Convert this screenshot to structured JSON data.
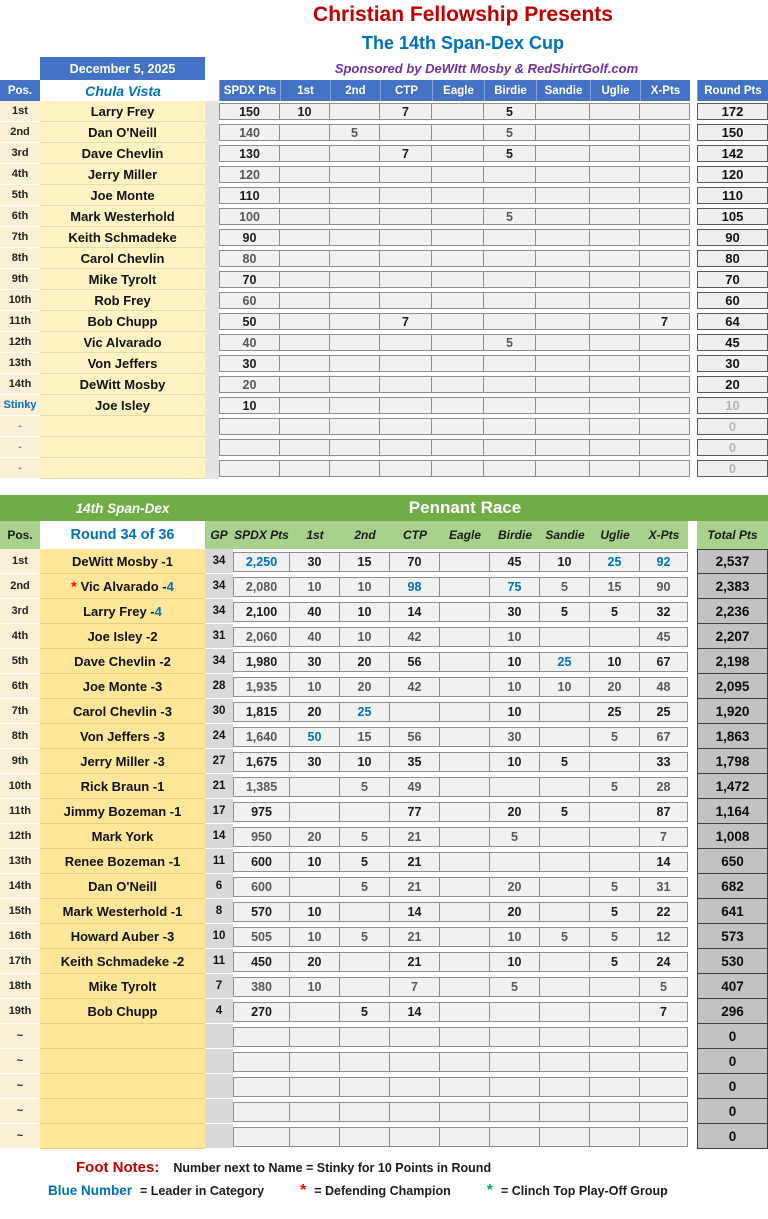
{
  "header": {
    "title1": "Christian Fellowship Presents",
    "title2": "The 14th Span-Dex Cup",
    "sponsor": "Sponsored by DeWItt Mosby & RedShirtGolf.com"
  },
  "colors": {
    "header_blue": "#4472C4",
    "accent_blue": "#0070C0",
    "title_red": "#C00000",
    "sponsor_purple": "#7030A0",
    "green_dark": "#70AD47",
    "green_light": "#A9D18E",
    "name_gold": "#FFE699",
    "name_light_yellow": "#FFF3C4",
    "champion_star_red": "#FF0000",
    "clinch_star_green": "#00B050"
  },
  "round_table": {
    "date": "December 5, 2025",
    "course": "Chula Vista",
    "pos_header": "Pos.",
    "columns": [
      "SPDX Pts",
      "1st",
      "2nd",
      "CTP",
      "Eagle",
      "Birdie",
      "Sandie",
      "Uglie",
      "X-Pts"
    ],
    "round_col": "Round Pts",
    "rows": [
      {
        "pos": "1st",
        "name": "Larry Frey",
        "cells": [
          "150",
          "10",
          "",
          "7",
          "",
          "5",
          "",
          "",
          ""
        ],
        "round": "172"
      },
      {
        "pos": "2nd",
        "name": "Dan O'Neill",
        "cells": [
          "140",
          "",
          "5",
          "",
          "",
          "5",
          "",
          "",
          ""
        ],
        "round": "150"
      },
      {
        "pos": "3rd",
        "name": "Dave Chevlin",
        "cells": [
          "130",
          "",
          "",
          "7",
          "",
          "5",
          "",
          "",
          ""
        ],
        "round": "142"
      },
      {
        "pos": "4th",
        "name": "Jerry Miller",
        "cells": [
          "120",
          "",
          "",
          "",
          "",
          "",
          "",
          "",
          ""
        ],
        "round": "120"
      },
      {
        "pos": "5th",
        "name": "Joe Monte",
        "cells": [
          "110",
          "",
          "",
          "",
          "",
          "",
          "",
          "",
          ""
        ],
        "round": "110"
      },
      {
        "pos": "6th",
        "name": "Mark Westerhold",
        "cells": [
          "100",
          "",
          "",
          "",
          "",
          "5",
          "",
          "",
          ""
        ],
        "round": "105"
      },
      {
        "pos": "7th",
        "name": "Keith Schmadeke",
        "cells": [
          "90",
          "",
          "",
          "",
          "",
          "",
          "",
          "",
          ""
        ],
        "round": "90"
      },
      {
        "pos": "8th",
        "name": "Carol Chevlin",
        "cells": [
          "80",
          "",
          "",
          "",
          "",
          "",
          "",
          "",
          ""
        ],
        "round": "80"
      },
      {
        "pos": "9th",
        "name": "Mike Tyrolt",
        "cells": [
          "70",
          "",
          "",
          "",
          "",
          "",
          "",
          "",
          ""
        ],
        "round": "70"
      },
      {
        "pos": "10th",
        "name": "Rob Frey",
        "cells": [
          "60",
          "",
          "",
          "",
          "",
          "",
          "",
          "",
          ""
        ],
        "round": "60"
      },
      {
        "pos": "11th",
        "name": "Bob Chupp",
        "cells": [
          "50",
          "",
          "",
          "7",
          "",
          "",
          "",
          "",
          "7"
        ],
        "round": "64"
      },
      {
        "pos": "12th",
        "name": "Vic Alvarado",
        "cells": [
          "40",
          "",
          "",
          "",
          "",
          "5",
          "",
          "",
          ""
        ],
        "round": "45"
      },
      {
        "pos": "13th",
        "name": "Von Jeffers",
        "cells": [
          "30",
          "",
          "",
          "",
          "",
          "",
          "",
          "",
          ""
        ],
        "round": "30"
      },
      {
        "pos": "14th",
        "name": "DeWitt Mosby",
        "cells": [
          "20",
          "",
          "",
          "",
          "",
          "",
          "",
          "",
          ""
        ],
        "round": "20"
      },
      {
        "pos": "Stinky",
        "pos_style": "blue",
        "name": "Joe Isley",
        "cells": [
          "10",
          "",
          "",
          "",
          "",
          "",
          "",
          "",
          ""
        ],
        "round": "10",
        "round_dim": true
      },
      {
        "pos": "-",
        "pos_style": "dash",
        "name": "",
        "cells": [
          "",
          "",
          "",
          "",
          "",
          "",
          "",
          "",
          ""
        ],
        "round": "0",
        "round_dim": true
      },
      {
        "pos": "-",
        "pos_style": "dash",
        "name": "",
        "cells": [
          "",
          "",
          "",
          "",
          "",
          "",
          "",
          "",
          ""
        ],
        "round": "0",
        "round_dim": true
      },
      {
        "pos": "-",
        "pos_style": "dash",
        "name": "",
        "cells": [
          "",
          "",
          "",
          "",
          "",
          "",
          "",
          "",
          ""
        ],
        "round": "0",
        "round_dim": true
      }
    ]
  },
  "pennant_table": {
    "series_label": "14th Span-Dex",
    "title": "Pennant Race",
    "round_label": "Round  34 of 36",
    "pos_header": "Pos.",
    "columns": [
      "GP",
      "SPDX Pts",
      "1st",
      "2nd",
      "CTP",
      "Eagle",
      "Birdie",
      "Sandie",
      "Uglie",
      "X-Pts"
    ],
    "total_col": "Total Pts",
    "rows": [
      {
        "pos": "1st",
        "name": "DeWitt Mosby",
        "stinkies": "1",
        "gp": "34",
        "cells": [
          {
            "v": "2,250",
            "b": 1
          },
          "30",
          "15",
          "70",
          "",
          "45",
          "10",
          {
            "v": "25",
            "b": 1
          },
          {
            "v": "92",
            "b": 1
          }
        ],
        "total": "2,537"
      },
      {
        "pos": "2nd",
        "name": "Vic Alvarado",
        "stinkies": "4",
        "stinkies_blue": true,
        "champion_star": true,
        "gp": "34",
        "cells": [
          "2,080",
          "10",
          "10",
          {
            "v": "98",
            "b": 1
          },
          "",
          {
            "v": "75",
            "b": 1
          },
          "5",
          "15",
          "90"
        ],
        "total": "2,383"
      },
      {
        "pos": "3rd",
        "name": "Larry Frey",
        "stinkies": "4",
        "stinkies_blue": true,
        "gp": "34",
        "cells": [
          "2,100",
          "40",
          "10",
          "14",
          "",
          "30",
          "5",
          "5",
          "32"
        ],
        "total": "2,236"
      },
      {
        "pos": "4th",
        "name": "Joe Isley",
        "stinkies": "2",
        "gp": "31",
        "cells": [
          "2,060",
          "40",
          "10",
          "42",
          "",
          "10",
          "",
          "",
          "45"
        ],
        "total": "2,207"
      },
      {
        "pos": "5th",
        "name": "Dave Chevlin",
        "stinkies": "2",
        "gp": "34",
        "cells": [
          "1,980",
          "30",
          "20",
          "56",
          "",
          "10",
          {
            "v": "25",
            "b": 1
          },
          "10",
          "67"
        ],
        "total": "2,198"
      },
      {
        "pos": "6th",
        "name": "Joe Monte",
        "stinkies": "3",
        "gp": "28",
        "cells": [
          "1,935",
          "10",
          "20",
          "42",
          "",
          "10",
          "10",
          "20",
          "48"
        ],
        "total": "2,095"
      },
      {
        "pos": "7th",
        "name": "Carol Chevlin",
        "stinkies": "3",
        "gp": "30",
        "cells": [
          "1,815",
          "20",
          {
            "v": "25",
            "b": 1
          },
          "",
          "",
          "10",
          "",
          "25",
          "25"
        ],
        "total": "1,920"
      },
      {
        "pos": "8th",
        "name": "Von Jeffers",
        "stinkies": "3",
        "gp": "24",
        "cells": [
          "1,640",
          {
            "v": "50",
            "b": 1
          },
          "15",
          "56",
          "",
          "30",
          "",
          "5",
          "67"
        ],
        "total": "1,863"
      },
      {
        "pos": "9th",
        "name": "Jerry Miller",
        "stinkies": "3",
        "gp": "27",
        "cells": [
          "1,675",
          "30",
          "10",
          "35",
          "",
          "10",
          "5",
          "",
          "33"
        ],
        "total": "1,798"
      },
      {
        "pos": "10th",
        "name": "Rick Braun",
        "stinkies": "1",
        "gp": "21",
        "cells": [
          "1,385",
          "",
          "5",
          "49",
          "",
          "",
          "",
          "5",
          "28"
        ],
        "total": "1,472"
      },
      {
        "pos": "11th",
        "name": "Jimmy Bozeman",
        "stinkies": "1",
        "gp": "17",
        "cells": [
          "975",
          "",
          "",
          "77",
          "",
          "20",
          "5",
          "",
          "87"
        ],
        "total": "1,164"
      },
      {
        "pos": "12th",
        "name": "Mark York",
        "gp": "14",
        "cells": [
          "950",
          "20",
          "5",
          "21",
          "",
          "5",
          "",
          "",
          "7"
        ],
        "total": "1,008"
      },
      {
        "pos": "13th",
        "name": "Renee Bozeman",
        "stinkies": "1",
        "gp": "11",
        "cells": [
          "600",
          "10",
          "5",
          "21",
          "",
          "",
          "",
          "",
          "14"
        ],
        "total": "650"
      },
      {
        "pos": "14th",
        "name": "Dan O'Neill",
        "gp": "6",
        "cells": [
          "600",
          "",
          "5",
          "21",
          "",
          "20",
          "",
          "5",
          "31"
        ],
        "total": "682"
      },
      {
        "pos": "15th",
        "name": "Mark Westerhold",
        "stinkies": "1",
        "gp": "8",
        "cells": [
          "570",
          "10",
          "",
          "14",
          "",
          "20",
          "",
          "5",
          "22"
        ],
        "total": "641"
      },
      {
        "pos": "16th",
        "name": "Howard Auber",
        "stinkies": "3",
        "gp": "10",
        "cells": [
          "505",
          "10",
          "5",
          "21",
          "",
          "10",
          "5",
          "5",
          "12"
        ],
        "total": "573"
      },
      {
        "pos": "17th",
        "name": "Keith Schmadeke",
        "stinkies": "2",
        "gp": "11",
        "cells": [
          "450",
          "20",
          "",
          "21",
          "",
          "10",
          "",
          "5",
          "24"
        ],
        "total": "530"
      },
      {
        "pos": "18th",
        "name": "Mike Tyrolt",
        "gp": "7",
        "cells": [
          "380",
          "10",
          "",
          "7",
          "",
          "5",
          "",
          "",
          "5"
        ],
        "total": "407"
      },
      {
        "pos": "19th",
        "name": "Bob Chupp",
        "gp": "4",
        "cells": [
          "270",
          "",
          "5",
          "14",
          "",
          "",
          "",
          "",
          "7"
        ],
        "total": "296"
      },
      {
        "pos": "~",
        "name": "",
        "gp": "",
        "cells": [
          "",
          "",
          "",
          "",
          "",
          "",
          "",
          "",
          ""
        ],
        "total": "0"
      },
      {
        "pos": "~",
        "name": "",
        "gp": "",
        "cells": [
          "",
          "",
          "",
          "",
          "",
          "",
          "",
          "",
          ""
        ],
        "total": "0"
      },
      {
        "pos": "~",
        "name": "",
        "gp": "",
        "cells": [
          "",
          "",
          "",
          "",
          "",
          "",
          "",
          "",
          ""
        ],
        "total": "0"
      },
      {
        "pos": "~",
        "name": "",
        "gp": "",
        "cells": [
          "",
          "",
          "",
          "",
          "",
          "",
          "",
          "",
          ""
        ],
        "total": "0"
      },
      {
        "pos": "~",
        "name": "",
        "gp": "",
        "cells": [
          "",
          "",
          "",
          "",
          "",
          "",
          "",
          "",
          ""
        ],
        "total": "0"
      }
    ]
  },
  "footnotes": {
    "label": "Foot Notes:",
    "note1": "Number next to Name =  Stinky for 10 Points in Round",
    "blue_term": "Blue Number",
    "blue_def": "=  Leader in Category",
    "red_star": "*",
    "red_def": "=  Defending Champion",
    "green_star": "*",
    "green_def": "=  Clinch Top Play-Off Group"
  }
}
